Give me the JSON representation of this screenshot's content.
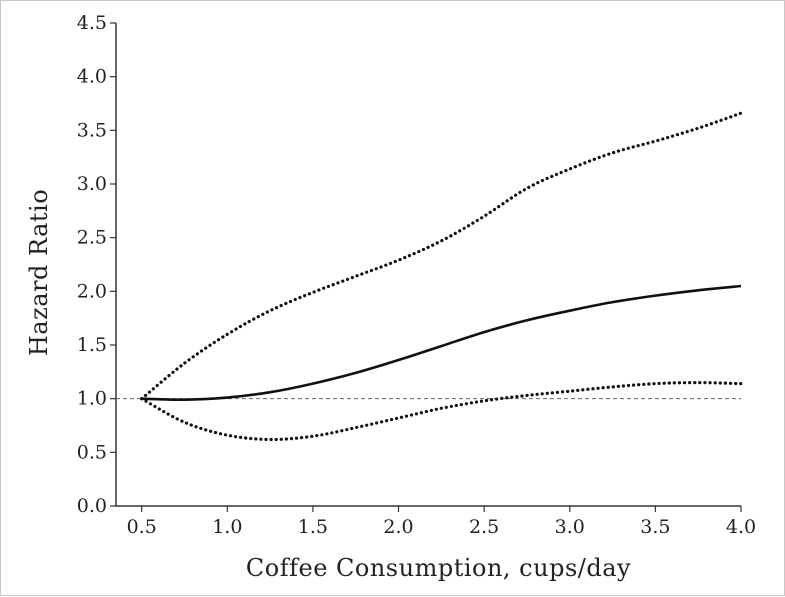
{
  "chart_data": {
    "type": "line",
    "xlabel": "Coffee Consumption, cups/day",
    "ylabel": "Hazard Ratio",
    "xlim": [
      0.35,
      4.0
    ],
    "ylim": [
      0.0,
      4.5
    ],
    "x_ticks": [
      "0.5",
      "1.0",
      "1.5",
      "2.0",
      "2.5",
      "3.0",
      "3.5",
      "4.0"
    ],
    "y_ticks": [
      "0.0",
      "0.5",
      "1.0",
      "1.5",
      "2.0",
      "2.5",
      "3.0",
      "3.5",
      "4.0",
      "4.5"
    ],
    "grid": false,
    "reference_line": {
      "y": 1.0,
      "style": "dashed"
    },
    "series": [
      {
        "style": "solid",
        "x": [
          0.5,
          0.75,
          1.0,
          1.25,
          1.5,
          1.75,
          2.0,
          2.25,
          2.5,
          2.75,
          3.0,
          3.25,
          3.5,
          3.75,
          4.0
        ],
        "y": [
          1.0,
          0.99,
          1.01,
          1.06,
          1.14,
          1.24,
          1.36,
          1.49,
          1.62,
          1.73,
          1.82,
          1.9,
          1.96,
          2.01,
          2.05
        ]
      },
      {
        "style": "dotted",
        "x": [
          0.5,
          0.75,
          1.0,
          1.25,
          1.5,
          1.75,
          2.0,
          2.25,
          2.5,
          2.75,
          3.0,
          3.25,
          3.5,
          3.75,
          4.0
        ],
        "y": [
          1.0,
          1.33,
          1.6,
          1.82,
          1.99,
          2.14,
          2.29,
          2.47,
          2.7,
          2.96,
          3.14,
          3.29,
          3.4,
          3.52,
          3.66
        ]
      },
      {
        "style": "dotted",
        "x": [
          0.5,
          0.75,
          1.0,
          1.25,
          1.5,
          1.75,
          2.0,
          2.25,
          2.5,
          2.75,
          3.0,
          3.25,
          3.5,
          3.75,
          4.0
        ],
        "y": [
          1.0,
          0.78,
          0.66,
          0.62,
          0.65,
          0.73,
          0.82,
          0.91,
          0.98,
          1.03,
          1.07,
          1.11,
          1.14,
          1.15,
          1.14
        ]
      }
    ]
  }
}
